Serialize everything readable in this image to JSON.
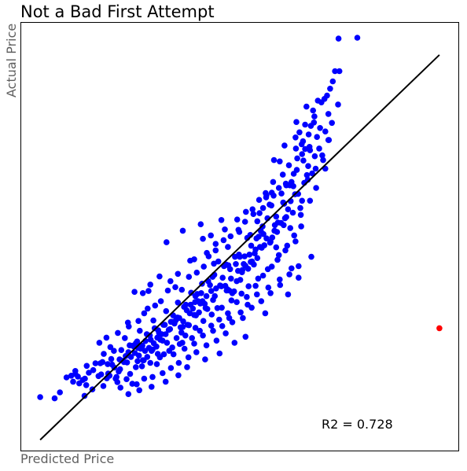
{
  "chart_data": {
    "type": "scatter",
    "title": "Not a Bad First Attempt",
    "xlabel": "Predicted Price",
    "ylabel": "Actual Price",
    "annotation": "R2 = 0.728",
    "grid": false,
    "xlim": [
      0,
      100
    ],
    "ylim": [
      0,
      100
    ],
    "colors": {
      "points": "#0000ff",
      "outlier": "#ff0000",
      "fit_line": "#000000"
    },
    "fit_line": {
      "x": [
        4.5,
        95.5
      ],
      "y": [
        2.5,
        92.5
      ]
    },
    "points": [
      [
        4.5,
        12.5
      ],
      [
        7.8,
        12.2
      ],
      [
        9.0,
        13.6
      ],
      [
        10.5,
        17.1
      ],
      [
        11.6,
        17.5
      ],
      [
        12.0,
        16.1
      ],
      [
        12.5,
        17.9
      ],
      [
        13.1,
        17.3
      ],
      [
        13.4,
        15.7
      ],
      [
        14.2,
        16.5
      ],
      [
        14.7,
        16.8
      ],
      [
        15.0,
        15.3
      ],
      [
        15.6,
        18.2
      ],
      [
        16.6,
        18.8
      ],
      [
        17.8,
        17.4
      ],
      [
        18.2,
        20.4
      ],
      [
        18.7,
        20.7
      ],
      [
        19.0,
        22.6
      ],
      [
        19.7,
        16.9
      ],
      [
        20.0,
        18.0
      ],
      [
        20.3,
        17.5
      ],
      [
        21.4,
        19.4
      ],
      [
        21.7,
        16.8
      ],
      [
        22.1,
        16.0
      ],
      [
        22.7,
        19.0
      ],
      [
        23.4,
        21.0
      ],
      [
        24.0,
        22.1
      ],
      [
        24.3,
        20.6
      ],
      [
        24.9,
        24.6
      ],
      [
        25.6,
        24.5
      ],
      [
        26.3,
        25.1
      ],
      [
        26.6,
        25.5
      ],
      [
        26.8,
        24.0
      ],
      [
        27.4,
        23.8
      ],
      [
        27.9,
        21.1
      ],
      [
        28.1,
        21.1
      ],
      [
        28.4,
        23.3
      ],
      [
        29.5,
        26.9
      ],
      [
        29.9,
        23.3
      ],
      [
        30.1,
        23.6
      ],
      [
        30.6,
        28.6
      ],
      [
        31.2,
        26.4
      ],
      [
        31.6,
        27.5
      ],
      [
        32.4,
        25.7
      ],
      [
        32.6,
        29.4
      ],
      [
        32.9,
        29.4
      ],
      [
        33.8,
        28.2
      ],
      [
        34.5,
        30.1
      ],
      [
        34.8,
        31.6
      ],
      [
        35.4,
        30.4
      ],
      [
        35.8,
        31.1
      ],
      [
        36.5,
        28.8
      ],
      [
        37.0,
        28.9
      ],
      [
        37.3,
        33.6
      ],
      [
        37.7,
        34.1
      ],
      [
        38.4,
        29.3
      ],
      [
        38.8,
        34.1
      ],
      [
        39.6,
        31.7
      ],
      [
        39.9,
        36.1
      ],
      [
        40.3,
        36.6
      ],
      [
        40.7,
        32.3
      ],
      [
        41.2,
        36.8
      ],
      [
        42.0,
        34.3
      ],
      [
        42.2,
        33.3
      ],
      [
        42.8,
        39.6
      ],
      [
        43.5,
        37.3
      ],
      [
        43.8,
        40.6
      ],
      [
        44.1,
        43.7
      ],
      [
        44.9,
        33.3
      ],
      [
        45.1,
        44.2
      ],
      [
        45.8,
        38.4
      ],
      [
        46.4,
        43.1
      ],
      [
        47.0,
        37.4
      ],
      [
        47.4,
        43.3
      ],
      [
        47.6,
        37.4
      ],
      [
        48.3,
        36.8
      ],
      [
        48.9,
        45.3
      ],
      [
        49.3,
        39.6
      ],
      [
        50.0,
        45.3
      ],
      [
        50.5,
        41.7
      ],
      [
        50.6,
        42.2
      ],
      [
        51.1,
        45.4
      ],
      [
        51.7,
        49.7
      ],
      [
        52.5,
        44.1
      ],
      [
        53.2,
        43.5
      ],
      [
        53.6,
        47.0
      ],
      [
        53.8,
        49.6
      ],
      [
        54.3,
        50.0
      ],
      [
        54.8,
        51.3
      ],
      [
        55.2,
        52.4
      ],
      [
        56.0,
        59.2
      ],
      [
        56.3,
        54.3
      ],
      [
        56.8,
        57.5
      ],
      [
        57.2,
        57.3
      ],
      [
        57.7,
        59.6
      ],
      [
        58.3,
        54.7
      ],
      [
        58.7,
        53.3
      ],
      [
        59.1,
        67.6
      ],
      [
        59.5,
        60.1
      ],
      [
        60.1,
        57.7
      ],
      [
        60.6,
        62.0
      ],
      [
        61.4,
        62.0
      ],
      [
        61.8,
        62.8
      ],
      [
        62.3,
        64.7
      ],
      [
        63.0,
        65.6
      ],
      [
        63.1,
        68.3
      ],
      [
        63.6,
        74.4
      ],
      [
        64.4,
        72.3
      ],
      [
        64.9,
        70.5
      ],
      [
        65.3,
        64.4
      ],
      [
        65.9,
        71.0
      ],
      [
        66.2,
        75.9
      ],
      [
        66.7,
        79.5
      ],
      [
        67.0,
        78.1
      ],
      [
        67.6,
        73.3
      ],
      [
        68.1,
        70.6
      ],
      [
        68.6,
        81.4
      ],
      [
        69.3,
        82.2
      ],
      [
        69.9,
        83.0
      ],
      [
        70.6,
        84.6
      ],
      [
        71.2,
        86.3
      ],
      [
        71.7,
        88.7
      ],
      [
        12.5,
        18.6
      ],
      [
        15.1,
        19.8
      ],
      [
        17.1,
        20.4
      ],
      [
        18.4,
        17.8
      ],
      [
        19.9,
        20.2
      ],
      [
        20.7,
        21.4
      ],
      [
        21.3,
        23.3
      ],
      [
        22.6,
        21.3
      ],
      [
        23.0,
        23.5
      ],
      [
        23.6,
        20.7
      ],
      [
        24.6,
        23.0
      ],
      [
        25.2,
        21.9
      ],
      [
        25.9,
        24.3
      ],
      [
        26.1,
        22.8
      ],
      [
        27.0,
        22.2
      ],
      [
        27.8,
        24.5
      ],
      [
        28.5,
        25.6
      ],
      [
        28.8,
        27.2
      ],
      [
        29.3,
        24.0
      ],
      [
        29.7,
        25.9
      ],
      [
        30.4,
        25.1
      ],
      [
        31.0,
        24.3
      ],
      [
        31.4,
        28.1
      ],
      [
        31.9,
        25.9
      ],
      [
        32.2,
        27.2
      ],
      [
        33.1,
        27.2
      ],
      [
        33.4,
        25.2
      ],
      [
        34.1,
        28.4
      ],
      [
        34.3,
        30.1
      ],
      [
        35.1,
        29.7
      ],
      [
        35.6,
        26.3
      ],
      [
        36.2,
        31.0
      ],
      [
        36.7,
        27.6
      ],
      [
        37.1,
        30.2
      ],
      [
        37.9,
        32.8
      ],
      [
        38.1,
        29.4
      ],
      [
        38.6,
        32.1
      ],
      [
        39.3,
        33.2
      ],
      [
        39.8,
        34.7
      ],
      [
        40.0,
        31.6
      ],
      [
        40.5,
        34.9
      ],
      [
        41.0,
        34.4
      ],
      [
        41.5,
        34.9
      ],
      [
        42.4,
        36.1
      ],
      [
        42.6,
        33.1
      ],
      [
        43.2,
        38.7
      ],
      [
        43.9,
        35.2
      ],
      [
        44.3,
        36.1
      ],
      [
        44.6,
        37.9
      ],
      [
        45.5,
        38.6
      ],
      [
        46.1,
        40.4
      ],
      [
        46.7,
        38.5
      ],
      [
        47.2,
        37.7
      ],
      [
        47.8,
        42.4
      ],
      [
        48.0,
        40.2
      ],
      [
        48.7,
        37.2
      ],
      [
        49.1,
        43.6
      ],
      [
        49.6,
        42.0
      ],
      [
        50.1,
        39.9
      ],
      [
        50.9,
        43.6
      ],
      [
        51.3,
        43.2
      ],
      [
        51.9,
        42.5
      ],
      [
        52.2,
        45.8
      ],
      [
        52.8,
        44.2
      ],
      [
        53.4,
        46.1
      ],
      [
        54.0,
        45.0
      ],
      [
        54.6,
        47.6
      ],
      [
        55.0,
        47.4
      ],
      [
        55.6,
        48.0
      ],
      [
        56.1,
        49.6
      ],
      [
        56.9,
        48.6
      ],
      [
        57.4,
        49.8
      ],
      [
        57.9,
        51.4
      ],
      [
        58.5,
        51.1
      ],
      [
        59.4,
        53.2
      ],
      [
        60.0,
        52.7
      ],
      [
        60.3,
        54.3
      ],
      [
        61.0,
        56.4
      ],
      [
        61.6,
        58.3
      ],
      [
        62.1,
        55.6
      ],
      [
        62.6,
        59.9
      ],
      [
        63.3,
        60.0
      ],
      [
        63.8,
        56.7
      ],
      [
        64.2,
        58.4
      ],
      [
        64.7,
        62.6
      ],
      [
        65.5,
        63.3
      ],
      [
        66.5,
        64.8
      ],
      [
        67.3,
        65.9
      ],
      [
        69.0,
        67.9
      ],
      [
        70.2,
        72.6
      ],
      [
        19.6,
        26.4
      ],
      [
        22.2,
        27.5
      ],
      [
        24.7,
        29.0
      ],
      [
        26.9,
        30.3
      ],
      [
        28.2,
        32.1
      ],
      [
        29.0,
        33.2
      ],
      [
        30.7,
        33.9
      ],
      [
        32.0,
        34.9
      ],
      [
        33.6,
        37.4
      ],
      [
        35.3,
        38.2
      ],
      [
        36.8,
        37.6
      ],
      [
        38.4,
        40.6
      ],
      [
        40.2,
        41.6
      ],
      [
        41.8,
        43.0
      ],
      [
        42.9,
        45.4
      ],
      [
        44.5,
        46.8
      ],
      [
        46.3,
        49.2
      ],
      [
        47.9,
        50.1
      ],
      [
        49.7,
        51.6
      ],
      [
        51.2,
        53.5
      ],
      [
        52.9,
        56.4
      ],
      [
        54.4,
        58.6
      ],
      [
        55.9,
        60.2
      ],
      [
        57.6,
        62.8
      ],
      [
        59.8,
        64.5
      ],
      [
        61.2,
        66.7
      ],
      [
        62.8,
        70.6
      ],
      [
        64.1,
        71.6
      ],
      [
        65.7,
        73.9
      ],
      [
        22.8,
        14.7
      ],
      [
        24.6,
        13.2
      ],
      [
        26.5,
        15.5
      ],
      [
        28.2,
        16.8
      ],
      [
        30.1,
        17.2
      ],
      [
        32.4,
        18.1
      ],
      [
        34.3,
        19.3
      ],
      [
        36.1,
        20.5
      ],
      [
        38.3,
        21.8
      ],
      [
        40.1,
        23.0
      ],
      [
        42.4,
        24.6
      ],
      [
        44.7,
        25.7
      ],
      [
        46.8,
        27.4
      ],
      [
        48.3,
        30.0
      ],
      [
        50.7,
        31.0
      ],
      [
        52.7,
        33.4
      ],
      [
        54.9,
        34.9
      ],
      [
        57.0,
        36.8
      ],
      [
        59.2,
        38.7
      ],
      [
        61.3,
        41.2
      ],
      [
        63.4,
        43.1
      ],
      [
        66.3,
        45.3
      ],
      [
        26.3,
        19.5
      ],
      [
        31.3,
        22.6
      ],
      [
        34.6,
        24.1
      ],
      [
        36.9,
        25.2
      ],
      [
        39.1,
        26.3
      ],
      [
        40.9,
        28.0
      ],
      [
        43.5,
        29.2
      ],
      [
        45.3,
        30.6
      ],
      [
        47.3,
        32.1
      ],
      [
        49.3,
        34.7
      ],
      [
        51.6,
        35.9
      ],
      [
        53.6,
        38.5
      ],
      [
        55.3,
        40.9
      ],
      [
        57.3,
        43.0
      ],
      [
        58.9,
        45.7
      ],
      [
        60.8,
        47.9
      ],
      [
        62.4,
        50.3
      ],
      [
        64.0,
        52.4
      ],
      [
        67.8,
        81.8
      ],
      [
        18.0,
        25.2
      ],
      [
        20.5,
        24.2
      ],
      [
        23.8,
        26.3
      ],
      [
        27.2,
        28.0
      ],
      [
        30.3,
        30.4
      ],
      [
        33.2,
        32.6
      ],
      [
        35.9,
        34.6
      ],
      [
        38.9,
        36.9
      ],
      [
        41.4,
        39.0
      ],
      [
        44.2,
        41.1
      ],
      [
        46.9,
        43.5
      ],
      [
        49.8,
        45.8
      ],
      [
        52.6,
        47.9
      ],
      [
        55.4,
        50.6
      ],
      [
        58.0,
        52.7
      ],
      [
        60.6,
        54.6
      ],
      [
        63.9,
        55.1
      ],
      [
        25.5,
        15.6
      ],
      [
        27.7,
        19.7
      ],
      [
        29.6,
        20.5
      ],
      [
        31.8,
        21.8
      ],
      [
        33.9,
        23.3
      ],
      [
        36.3,
        24.9
      ],
      [
        37.6,
        26.9
      ],
      [
        39.9,
        28.7
      ],
      [
        41.7,
        30.3
      ],
      [
        43.6,
        31.8
      ],
      [
        45.9,
        33.4
      ],
      [
        48.1,
        35.1
      ],
      [
        50.4,
        36.7
      ],
      [
        52.0,
        38.4
      ],
      [
        54.2,
        40.2
      ],
      [
        56.4,
        42.4
      ],
      [
        58.6,
        44.6
      ],
      [
        60.4,
        46.8
      ],
      [
        62.7,
        48.9
      ],
      [
        20.9,
        20.1
      ],
      [
        22.4,
        18.5
      ],
      [
        25.0,
        17.9
      ],
      [
        26.7,
        20.9
      ],
      [
        28.9,
        21.9
      ],
      [
        31.1,
        20.2
      ],
      [
        32.7,
        22.5
      ],
      [
        34.9,
        22.5
      ],
      [
        37.4,
        23.8
      ],
      [
        39.6,
        25.0
      ],
      [
        41.6,
        26.9
      ],
      [
        43.9,
        28.0
      ],
      [
        46.0,
        29.1
      ],
      [
        47.6,
        31.0
      ],
      [
        50.2,
        32.3
      ],
      [
        51.8,
        34.1
      ],
      [
        53.9,
        36.5
      ],
      [
        56.5,
        38.1
      ],
      [
        59.1,
        40.0
      ],
      [
        61.8,
        42.6
      ],
      [
        14.6,
        12.8
      ],
      [
        16.4,
        14.3
      ],
      [
        18.9,
        15.1
      ],
      [
        63.4,
        40.4
      ],
      [
        61.0,
        36.5
      ],
      [
        55.8,
        32.1
      ],
      [
        51.3,
        26.6
      ],
      [
        48.8,
        25.2
      ],
      [
        45.4,
        22.7
      ],
      [
        42.1,
        21.3
      ],
      [
        38.0,
        19.5
      ],
      [
        36.0,
        17.6
      ],
      [
        33.1,
        16.1
      ],
      [
        29.9,
        14.9
      ],
      [
        27.1,
        14.1
      ],
      [
        24.2,
        16.7
      ],
      [
        21.9,
        17.2
      ],
      [
        66.0,
        70.2
      ],
      [
        66.9,
        76.7
      ],
      [
        68.3,
        75.4
      ],
      [
        70.2,
        78.7
      ],
      [
        72.4,
        80.9
      ],
      [
        64.5,
        67.8
      ],
      [
        66.0,
        58.4
      ],
      [
        67.4,
        61.4
      ],
      [
        62.2,
        61.8
      ],
      [
        57.8,
        67.9
      ],
      [
        60.2,
        71.3
      ],
      [
        57.0,
        48.8
      ],
      [
        58.3,
        47.5
      ],
      [
        61.5,
        52.0
      ],
      [
        54.0,
        53.6
      ],
      [
        52.4,
        50.4
      ],
      [
        62.7,
        73.2
      ],
      [
        62.9,
        76.8
      ],
      [
        64.9,
        76.2
      ],
      [
        65.2,
        80.4
      ],
      [
        71.0,
        76.6
      ],
      [
        69.5,
        74.6
      ],
      [
        70.3,
        72.6
      ],
      [
        64.2,
        69.3
      ],
      [
        59.9,
        58.0
      ],
      [
        54.5,
        55.5
      ],
      [
        49.9,
        51.1
      ],
      [
        47.3,
        47.6
      ],
      [
        44.5,
        48.3
      ],
      [
        43.4,
        50.3
      ],
      [
        41.1,
        52.9
      ],
      [
        37.0,
        51.4
      ],
      [
        33.3,
        48.7
      ],
      [
        29.2,
        37.3
      ],
      [
        38.7,
        44.4
      ],
      [
        41.6,
        49.5
      ],
      [
        56.1,
        59.7
      ],
      [
        57.3,
        60.3
      ],
      [
        58.9,
        61.4
      ],
      [
        60.5,
        62.4
      ],
      [
        55.3,
        56.7
      ],
      [
        53.1,
        55.3
      ],
      [
        51.4,
        55.8
      ],
      [
        49.4,
        54.0
      ],
      [
        46.6,
        51.7
      ],
      [
        45.8,
        53.9
      ],
      [
        42.5,
        46.2
      ],
      [
        39.6,
        44.7
      ],
      [
        35.9,
        41.3
      ],
      [
        34.2,
        39.6
      ],
      [
        31.7,
        40.7
      ],
      [
        29.6,
        38.8
      ],
      [
        27.9,
        36.8
      ],
      [
        26.0,
        37.1
      ],
      [
        24.5,
        29.9
      ],
      [
        65.6,
        66.5
      ],
      [
        68.8,
        69.0
      ],
      [
        67.1,
        68.8
      ],
      [
        69.5,
        65.9
      ],
      [
        72.5,
        96.3
      ],
      [
        76.8,
        96.5
      ],
      [
        72.7,
        88.7
      ],
      [
        95.5,
        28.6
      ]
    ],
    "outlier": [
      95.5,
      28.6
    ]
  }
}
